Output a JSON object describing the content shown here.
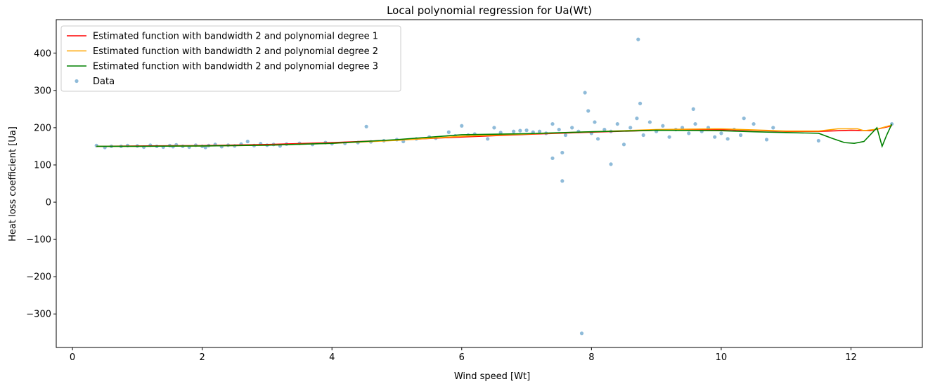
{
  "chart_data": {
    "type": "line",
    "title": "Local polynomial regression for Ua(Wt)",
    "x_label": "Wind speed [Wt]",
    "y_label": "Heat loss coefficient [Ua]",
    "xlim": [
      -0.25,
      13.1
    ],
    "ylim": [
      -390,
      490
    ],
    "xticks": [
      0,
      2,
      4,
      6,
      8,
      10,
      12
    ],
    "yticks": [
      {
        "value": -300,
        "label": "−300"
      },
      {
        "value": -200,
        "label": "−200"
      },
      {
        "value": -100,
        "label": "−100"
      },
      0,
      100,
      200,
      300,
      400
    ],
    "legend": "upper left",
    "series": [
      {
        "name": "Estimated function with bandwidth 2 and polynomial degree 1",
        "color": "#ff0000",
        "type": "line",
        "x": [
          0.37,
          1,
          2,
          3,
          4,
          5,
          6,
          7,
          8,
          9,
          10,
          10.5,
          11,
          11.5,
          12,
          12.3,
          12.63
        ],
        "values": [
          150,
          151,
          152,
          155,
          160,
          167,
          175,
          182,
          188,
          193,
          195,
          193,
          190,
          190,
          193,
          192,
          205
        ]
      },
      {
        "name": "Estimated function with bandwidth 2 and polynomial degree 2",
        "color": "#ffa500",
        "type": "line",
        "x": [
          0.37,
          1,
          2,
          3,
          4,
          5,
          6,
          7,
          8,
          9,
          10,
          10.5,
          11,
          11.5,
          11.8,
          12.1,
          12.2,
          12.4,
          12.63
        ],
        "values": [
          150,
          150,
          151,
          153,
          158,
          166,
          177,
          183,
          189,
          195,
          197,
          194,
          191,
          191,
          197,
          197,
          192,
          196,
          207
        ]
      },
      {
        "name": "Estimated function with bandwidth 2 and polynomial degree 3",
        "color": "#008000",
        "type": "line",
        "x": [
          0.37,
          1,
          2,
          3,
          4,
          5,
          6,
          7,
          8,
          9,
          10,
          10.5,
          11,
          11.5,
          11.7,
          11.9,
          12.05,
          12.2,
          12.4,
          12.48,
          12.55,
          12.63
        ],
        "values": [
          150,
          150,
          151,
          153,
          158,
          168,
          181,
          184,
          189,
          193,
          192,
          189,
          187,
          185,
          172,
          160,
          158,
          163,
          200,
          150,
          180,
          210
        ]
      },
      {
        "name": "Data",
        "color": "#1f77b4",
        "type": "scatter",
        "x": [
          0.37,
          0.5,
          0.6,
          0.75,
          0.85,
          1.0,
          1.1,
          1.2,
          1.3,
          1.4,
          1.5,
          1.55,
          1.6,
          1.7,
          1.8,
          1.9,
          2.0,
          2.05,
          2.1,
          2.2,
          2.3,
          2.4,
          2.5,
          2.6,
          2.7,
          2.8,
          2.9,
          3.0,
          3.1,
          3.2,
          3.3,
          3.5,
          3.7,
          3.9,
          4.0,
          4.2,
          4.4,
          4.53,
          4.6,
          4.8,
          5.0,
          5.1,
          5.3,
          5.5,
          5.6,
          5.8,
          5.9,
          6.0,
          6.1,
          6.2,
          6.4,
          6.5,
          6.6,
          6.8,
          6.9,
          7.0,
          7.1,
          7.2,
          7.3,
          7.4,
          7.4,
          7.5,
          7.55,
          7.55,
          7.6,
          7.7,
          7.8,
          7.85,
          7.9,
          7.95,
          8.0,
          8.05,
          8.1,
          8.2,
          8.3,
          8.3,
          8.4,
          8.5,
          8.6,
          8.7,
          8.72,
          8.75,
          8.8,
          8.9,
          9.0,
          9.1,
          9.2,
          9.3,
          9.4,
          9.5,
          9.57,
          9.6,
          9.7,
          9.8,
          9.9,
          10.0,
          10.1,
          10.2,
          10.3,
          10.35,
          10.5,
          10.7,
          10.8,
          11.5,
          12.63
        ],
        "values": [
          152,
          147,
          150,
          150,
          152,
          151,
          148,
          153,
          150,
          148,
          152,
          149,
          154,
          150,
          148,
          153,
          150,
          147,
          152,
          155,
          149,
          153,
          151,
          156,
          163,
          152,
          157,
          153,
          155,
          151,
          156,
          158,
          155,
          160,
          157,
          158,
          160,
          203,
          162,
          165,
          168,
          163,
          170,
          175,
          172,
          188,
          178,
          205,
          180,
          183,
          170,
          200,
          187,
          190,
          192,
          193,
          188,
          190,
          185,
          118,
          210,
          195,
          57,
          133,
          180,
          200,
          190,
          -352,
          294,
          245,
          185,
          215,
          170,
          195,
          102,
          190,
          210,
          155,
          200,
          225,
          437,
          265,
          180,
          215,
          190,
          205,
          175,
          195,
          200,
          185,
          250,
          210,
          190,
          200,
          175,
          185,
          170,
          195,
          180,
          225,
          210,
          168,
          200,
          165,
          210
        ]
      }
    ]
  }
}
